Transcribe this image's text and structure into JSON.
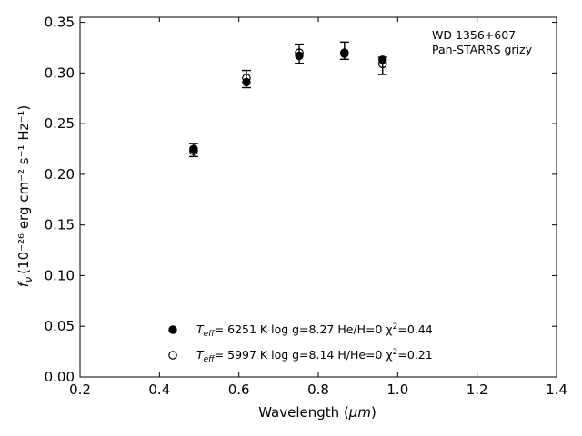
{
  "chart_data": {
    "type": "scatter",
    "title": "",
    "xlabel_prefix": "Wavelength (",
    "xlabel_unit": "μm",
    "xlabel_suffix": ")",
    "ylabel_main": "f",
    "ylabel_sub": "ν",
    "ylabel_units": "(10⁻²⁶ erg cm⁻² s⁻¹ Hz⁻¹)",
    "xlim": [
      0.2,
      1.4
    ],
    "ylim": [
      0.0,
      0.355
    ],
    "xticks": [
      0.2,
      0.4,
      0.6,
      0.8,
      1.0,
      1.2,
      1.4
    ],
    "xtick_labels": [
      "0.2",
      "0.4",
      "0.6",
      "0.8",
      "1.0",
      "1.2",
      "1.4"
    ],
    "yticks": [
      0.0,
      0.05,
      0.1,
      0.15,
      0.2,
      0.25,
      0.3,
      0.35
    ],
    "ytick_labels": [
      "0.00",
      "0.05",
      "0.10",
      "0.15",
      "0.20",
      "0.25",
      "0.30",
      "0.35"
    ],
    "annotation_lines": [
      "WD 1356+607",
      "Pan-STARRS grizy"
    ],
    "legend_placement": "lower-center",
    "observed": {
      "x": [
        0.486,
        0.619,
        0.752,
        0.866,
        0.962
      ],
      "y": [
        0.224,
        0.294,
        0.319,
        0.322,
        0.307
      ],
      "yerr": [
        0.0065,
        0.0085,
        0.0095,
        0.0085,
        0.0085
      ]
    },
    "series": [
      {
        "name_parts": [
          "T",
          "eff",
          "=  6251 K  log g=8.27  He/H=0  χ",
          "2",
          "=0.44"
        ],
        "marker": "filled-circle",
        "x": [
          0.486,
          0.619,
          0.752,
          0.866,
          0.962
        ],
        "y": [
          0.225,
          0.291,
          0.317,
          0.319,
          0.313
        ]
      },
      {
        "name_parts": [
          "T",
          "eff",
          "=  5997 K  log g=8.14  H/He=0  χ",
          "2",
          "=0.21"
        ],
        "marker": "open-circle",
        "x": [
          0.486,
          0.619,
          0.752,
          0.866,
          0.962
        ],
        "y": [
          0.223,
          0.295,
          0.32,
          0.32,
          0.309
        ]
      }
    ]
  }
}
